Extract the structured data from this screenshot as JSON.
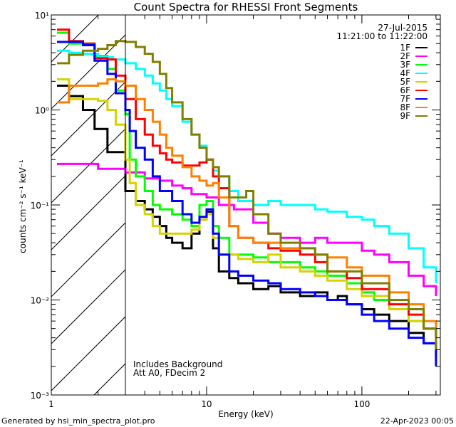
{
  "chart_data": {
    "type": "line",
    "title": "Count Spectra for RHESSI Front Segments",
    "xlabel": "Energy (keV)",
    "ylabel": "counts cm⁻² s⁻¹ keV⁻¹",
    "xscale": "log",
    "yscale": "log",
    "xlim": [
      1,
      320
    ],
    "ylim": [
      0.001,
      10
    ],
    "xticks": [
      {
        "value": 1,
        "label": "1"
      },
      {
        "value": 10,
        "label": "10"
      },
      {
        "value": 100,
        "label": "100"
      }
    ],
    "yticks": [
      {
        "value": 0.001,
        "label": "10⁻³"
      },
      {
        "value": 0.01,
        "label": "10⁻²"
      },
      {
        "value": 0.1,
        "label": "10⁻¹"
      },
      {
        "value": 1,
        "label": "10⁰"
      },
      {
        "value": 10,
        "label": "10¹"
      }
    ],
    "shaded_below_keV": 3,
    "date": "27-Jul-2015",
    "time_range": "11:21:00 to 11:22:00",
    "annotations": [
      "Includes Background",
      "Att A0, FDecim 2"
    ],
    "legend_position": "top-right",
    "series": [
      {
        "name": "1F",
        "color": "#000000",
        "points": [
          [
            1.1,
            1.8
          ],
          [
            1.3,
            1.4
          ],
          [
            1.6,
            1.0
          ],
          [
            1.9,
            0.63
          ],
          [
            2.3,
            0.36
          ],
          [
            2.6,
            0.36
          ],
          [
            3.0,
            0.14
          ],
          [
            3.5,
            0.11
          ],
          [
            4,
            0.09
          ],
          [
            4.5,
            0.075
          ],
          [
            5,
            0.06
          ],
          [
            5.5,
            0.045
          ],
          [
            6,
            0.04
          ],
          [
            7,
            0.035
          ],
          [
            8,
            0.05
          ],
          [
            9,
            0.07
          ],
          [
            10,
            0.085
          ],
          [
            11,
            0.035
          ],
          [
            12,
            0.02
          ],
          [
            14,
            0.017
          ],
          [
            16,
            0.015
          ],
          [
            20,
            0.013
          ],
          [
            25,
            0.014
          ],
          [
            30,
            0.012
          ],
          [
            40,
            0.011
          ],
          [
            50,
            0.012
          ],
          [
            60,
            0.01
          ],
          [
            70,
            0.011
          ],
          [
            80,
            0.009
          ],
          [
            100,
            0.008
          ],
          [
            120,
            0.007
          ],
          [
            150,
            0.006
          ],
          [
            200,
            0.0045
          ],
          [
            250,
            0.0035
          ],
          [
            300,
            0.0025
          ]
        ]
      },
      {
        "name": "2F",
        "color": "#ff00ff",
        "points": [
          [
            1.1,
            0.27
          ],
          [
            1.5,
            0.27
          ],
          [
            2,
            0.24
          ],
          [
            3,
            0.22
          ],
          [
            4,
            0.19
          ],
          [
            5,
            0.18
          ],
          [
            6,
            0.16
          ],
          [
            7,
            0.15
          ],
          [
            8,
            0.13
          ],
          [
            10,
            0.12
          ],
          [
            12,
            0.1
          ],
          [
            15,
            0.09
          ],
          [
            20,
            0.065
          ],
          [
            25,
            0.05
          ],
          [
            30,
            0.045
          ],
          [
            40,
            0.04
          ],
          [
            50,
            0.045
          ],
          [
            60,
            0.04
          ],
          [
            80,
            0.04
          ],
          [
            100,
            0.033
          ],
          [
            120,
            0.03
          ],
          [
            150,
            0.025
          ],
          [
            200,
            0.018
          ],
          [
            250,
            0.014
          ],
          [
            300,
            0.011
          ]
        ]
      },
      {
        "name": "3F",
        "color": "#00ff00",
        "points": [
          [
            1.1,
            6.5
          ],
          [
            1.3,
            5.0
          ],
          [
            1.6,
            5.0
          ],
          [
            1.9,
            3.7
          ],
          [
            2.3,
            2.7
          ],
          [
            2.6,
            1.6
          ],
          [
            3.0,
            0.9
          ],
          [
            3.2,
            0.3
          ],
          [
            3.5,
            0.2
          ],
          [
            4,
            0.14
          ],
          [
            4.5,
            0.1
          ],
          [
            5,
            0.09
          ],
          [
            6,
            0.08
          ],
          [
            7,
            0.07
          ],
          [
            8,
            0.06
          ],
          [
            9,
            0.1
          ],
          [
            10,
            0.11
          ],
          [
            11,
            0.06
          ],
          [
            12,
            0.045
          ],
          [
            14,
            0.03
          ],
          [
            16,
            0.03
          ],
          [
            20,
            0.028
          ],
          [
            25,
            0.025
          ],
          [
            30,
            0.025
          ],
          [
            40,
            0.022
          ],
          [
            50,
            0.02
          ],
          [
            60,
            0.018
          ],
          [
            80,
            0.015
          ],
          [
            100,
            0.012
          ],
          [
            120,
            0.01
          ],
          [
            150,
            0.008
          ],
          [
            200,
            0.006
          ],
          [
            250,
            0.005
          ],
          [
            300,
            0.004
          ]
        ]
      },
      {
        "name": "4F",
        "color": "#00ffff",
        "points": [
          [
            1.1,
            4.2
          ],
          [
            1.3,
            4.0
          ],
          [
            1.6,
            3.9
          ],
          [
            2,
            3.6
          ],
          [
            2.5,
            3.4
          ],
          [
            3,
            3.1
          ],
          [
            3.5,
            2.7
          ],
          [
            4,
            2.3
          ],
          [
            4.5,
            1.9
          ],
          [
            5,
            1.6
          ],
          [
            5.5,
            1.3
          ],
          [
            6,
            1.1
          ],
          [
            7,
            0.75
          ],
          [
            8,
            0.55
          ],
          [
            9,
            0.42
          ],
          [
            10,
            0.3
          ],
          [
            11,
            0.23
          ],
          [
            12,
            0.2
          ],
          [
            14,
            0.14
          ],
          [
            16,
            0.11
          ],
          [
            20,
            0.1
          ],
          [
            25,
            0.11
          ],
          [
            30,
            0.1
          ],
          [
            40,
            0.1
          ],
          [
            50,
            0.09
          ],
          [
            60,
            0.085
          ],
          [
            80,
            0.075
          ],
          [
            100,
            0.07
          ],
          [
            120,
            0.06
          ],
          [
            150,
            0.05
          ],
          [
            200,
            0.035
          ],
          [
            250,
            0.022
          ],
          [
            300,
            0.015
          ]
        ]
      },
      {
        "name": "5F",
        "color": "#d4d400",
        "points": [
          [
            1.1,
            2.1
          ],
          [
            1.3,
            1.3
          ],
          [
            1.6,
            1.3
          ],
          [
            2,
            1.25
          ],
          [
            2.3,
            1.0
          ],
          [
            2.6,
            0.7
          ],
          [
            3.0,
            0.3
          ],
          [
            3.2,
            0.17
          ],
          [
            3.5,
            0.1
          ],
          [
            4,
            0.08
          ],
          [
            4.5,
            0.06
          ],
          [
            5,
            0.05
          ],
          [
            6,
            0.05
          ],
          [
            7,
            0.05
          ],
          [
            8,
            0.055
          ],
          [
            9,
            0.07
          ],
          [
            10,
            0.08
          ],
          [
            11,
            0.045
          ],
          [
            12,
            0.03
          ],
          [
            14,
            0.03
          ],
          [
            16,
            0.027
          ],
          [
            20,
            0.025
          ],
          [
            25,
            0.03
          ],
          [
            30,
            0.022
          ],
          [
            40,
            0.02
          ],
          [
            50,
            0.018
          ],
          [
            60,
            0.016
          ],
          [
            80,
            0.013
          ],
          [
            100,
            0.011
          ],
          [
            150,
            0.008
          ],
          [
            200,
            0.006
          ],
          [
            250,
            0.005
          ],
          [
            300,
            0.004
          ]
        ]
      },
      {
        "name": "6F",
        "color": "#ff0000",
        "points": [
          [
            1.1,
            7.0
          ],
          [
            1.3,
            5.3
          ],
          [
            1.6,
            5.0
          ],
          [
            1.9,
            3.5
          ],
          [
            2.3,
            3.4
          ],
          [
            2.6,
            2.3
          ],
          [
            3,
            1.3
          ],
          [
            3.5,
            0.8
          ],
          [
            4,
            0.55
          ],
          [
            4.5,
            0.42
          ],
          [
            5,
            0.35
          ],
          [
            5.5,
            0.3
          ],
          [
            6,
            0.28
          ],
          [
            7,
            0.26
          ],
          [
            8,
            0.26
          ],
          [
            9,
            0.28
          ],
          [
            10,
            0.3
          ],
          [
            11,
            0.2
          ],
          [
            12,
            0.15
          ],
          [
            14,
            0.06
          ],
          [
            16,
            0.045
          ],
          [
            20,
            0.04
          ],
          [
            25,
            0.035
          ],
          [
            30,
            0.033
          ],
          [
            40,
            0.03
          ],
          [
            50,
            0.025
          ],
          [
            60,
            0.02
          ],
          [
            80,
            0.017
          ],
          [
            100,
            0.013
          ],
          [
            150,
            0.009
          ],
          [
            200,
            0.007
          ],
          [
            250,
            0.005
          ],
          [
            300,
            0.004
          ]
        ]
      },
      {
        "name": "7F",
        "color": "#0000ff",
        "points": [
          [
            1.1,
            5.2
          ],
          [
            1.3,
            5.2
          ],
          [
            1.6,
            4.8
          ],
          [
            1.9,
            3.3
          ],
          [
            2.3,
            2.4
          ],
          [
            2.6,
            1.5
          ],
          [
            3,
            1.0
          ],
          [
            3.2,
            0.6
          ],
          [
            3.5,
            0.4
          ],
          [
            4,
            0.3
          ],
          [
            4.5,
            0.2
          ],
          [
            5,
            0.14
          ],
          [
            6,
            0.11
          ],
          [
            7,
            0.08
          ],
          [
            8,
            0.065
          ],
          [
            9,
            0.075
          ],
          [
            10,
            0.09
          ],
          [
            11,
            0.05
          ],
          [
            12,
            0.03
          ],
          [
            14,
            0.02
          ],
          [
            16,
            0.018
          ],
          [
            20,
            0.016
          ],
          [
            25,
            0.015
          ],
          [
            30,
            0.013
          ],
          [
            40,
            0.012
          ],
          [
            50,
            0.011
          ],
          [
            60,
            0.01
          ],
          [
            80,
            0.009
          ],
          [
            100,
            0.007
          ],
          [
            120,
            0.006
          ],
          [
            150,
            0.005
          ],
          [
            200,
            0.004
          ],
          [
            250,
            0.0035
          ],
          [
            300,
            0.002
          ]
        ]
      },
      {
        "name": "8F",
        "color": "#ff8000",
        "points": [
          [
            1.1,
            1.2
          ],
          [
            1.3,
            1.8
          ],
          [
            1.6,
            1.8
          ],
          [
            2,
            1.9
          ],
          [
            2.3,
            2.1
          ],
          [
            2.6,
            2.0
          ],
          [
            3,
            1.8
          ],
          [
            3.5,
            1.3
          ],
          [
            4,
            1.0
          ],
          [
            4.5,
            0.75
          ],
          [
            5,
            0.55
          ],
          [
            5.5,
            0.4
          ],
          [
            6,
            0.33
          ],
          [
            7,
            0.25
          ],
          [
            8,
            0.2
          ],
          [
            9,
            0.18
          ],
          [
            10,
            0.16
          ],
          [
            11,
            0.17
          ],
          [
            12,
            0.12
          ],
          [
            14,
            0.06
          ],
          [
            16,
            0.045
          ],
          [
            20,
            0.04
          ],
          [
            25,
            0.04
          ],
          [
            30,
            0.035
          ],
          [
            40,
            0.035
          ],
          [
            50,
            0.03
          ],
          [
            60,
            0.028
          ],
          [
            80,
            0.022
          ],
          [
            100,
            0.018
          ],
          [
            150,
            0.012
          ],
          [
            200,
            0.009
          ],
          [
            250,
            0.006
          ],
          [
            300,
            0.004
          ]
        ]
      },
      {
        "name": "9F",
        "color": "#808000",
        "points": [
          [
            1.1,
            3.1
          ],
          [
            1.3,
            3.8
          ],
          [
            1.6,
            4.2
          ],
          [
            2,
            4.4
          ],
          [
            2.3,
            4.8
          ],
          [
            2.6,
            5.3
          ],
          [
            3,
            5.2
          ],
          [
            3.5,
            4.6
          ],
          [
            4,
            3.9
          ],
          [
            4.5,
            3.2
          ],
          [
            5,
            2.4
          ],
          [
            5.5,
            1.7
          ],
          [
            6,
            1.2
          ],
          [
            7,
            0.8
          ],
          [
            8,
            0.55
          ],
          [
            9,
            0.4
          ],
          [
            10,
            0.3
          ],
          [
            11,
            0.25
          ],
          [
            12,
            0.2
          ],
          [
            14,
            0.12
          ],
          [
            16,
            0.12
          ],
          [
            18,
            0.14
          ],
          [
            20,
            0.08
          ],
          [
            25,
            0.05
          ],
          [
            30,
            0.04
          ],
          [
            40,
            0.035
          ],
          [
            50,
            0.03
          ],
          [
            60,
            0.02
          ],
          [
            80,
            0.02
          ],
          [
            100,
            0.015
          ],
          [
            150,
            0.01
          ],
          [
            200,
            0.008
          ],
          [
            250,
            0.005
          ],
          [
            300,
            0.003
          ]
        ]
      }
    ]
  },
  "footer": {
    "generated_by": "Generated by hsi_min_spectra_plot.pro",
    "timestamp": "22-Apr-2023 00:05"
  }
}
